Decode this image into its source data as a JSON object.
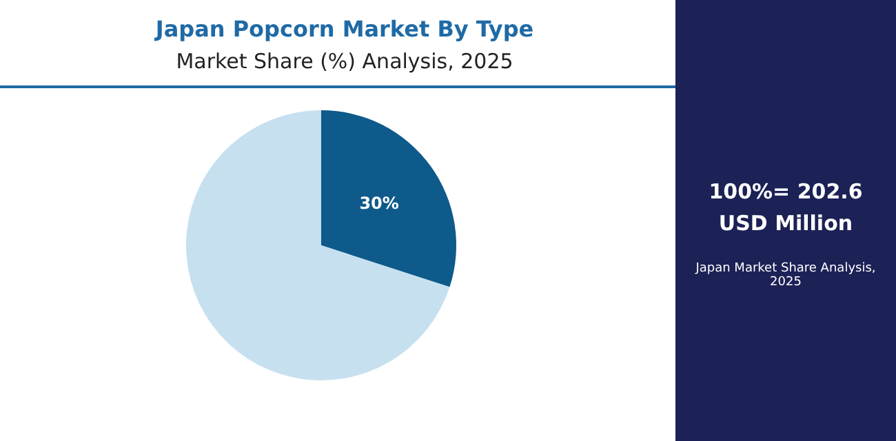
{
  "chart_data": {
    "type": "pie",
    "title": "Japan Popcorn Market By Type",
    "subtitle": "Market Share (%) Analysis, 2025",
    "categories": [
      null,
      null
    ],
    "values": [
      30,
      70
    ],
    "colors": [
      "#0e5a8a",
      "#c6e0f0"
    ],
    "value_labels": [
      "30%",
      null
    ],
    "annotations": [
      "100%= 202.6 USD Million",
      "Japan Market Share Analysis, 2025"
    ]
  }
}
